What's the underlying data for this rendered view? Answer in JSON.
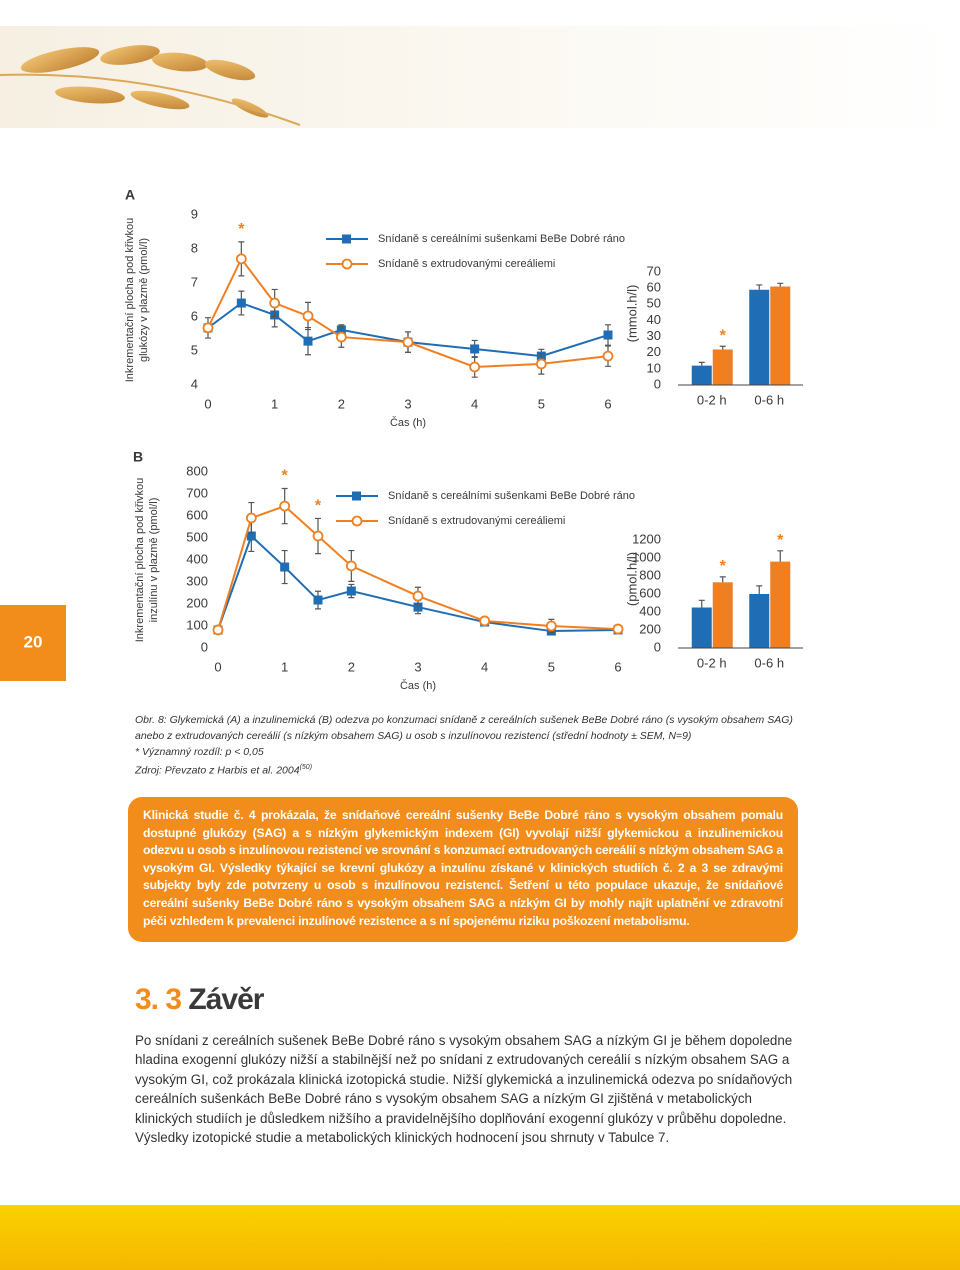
{
  "page_number": "20",
  "caption": {
    "text": "Obr. 8: Glykemická (A) a inzulinemická (B) odezva po konzumaci snídaně z cereálních sušenek BeBe Dobré ráno (s vysokým obsahem SAG) anebo z extrudovaných cereálií (s nízkým obsahem SAG) u osob s inzulínovou rezistencí (střední hodnoty ± SEM, N=9)",
    "note": "* Významný rozdíl: p < 0,05",
    "source": "Zdroj: Převzato z Harbis et al. 2004",
    "source_ref": "(50)"
  },
  "box": {
    "text": "Klinická studie č. 4 prokázala, že snídaňové cereální sušenky BeBe Dobré ráno s vysokým obsahem pomalu dostupné glukózy (SAG) a s nízkým glykemickým indexem (GI) vyvolají nižší glykemickou a inzulinemickou odezvu u osob s inzulínovou rezistencí ve srovnání s konzumací extrudovaných cereálií s nízkým obsahem SAG a vysokým GI. Výsledky týkající se krevní glukózy a inzulínu získané v klinických studiích č. 2 a 3 se zdravými subjekty byly zde potvrzeny u osob s inzulínovou rezistencí. Šetření u této populace ukazuje, že snídaňové cereální sušenky BeBe Dobré ráno s vysokým obsahem SAG a nízkým GI by mohly najít uplatnění ve zdravotní péči vzhledem k prevalenci inzulínové rezistence a s ní spojenému riziku poškození metabolismu."
  },
  "section": {
    "number": "3. 3",
    "title": "Závěr",
    "text": "Po snídani z cereálních sušenek BeBe Dobré ráno s vysokým obsahem SAG a nízkým GI je během dopoledne hladina exogenní glukózy nižší a stabilnější než po snídani z extrudovaných cereálií s nízkým obsahem SAG a vysokým GI, což prokázala klinická izotopická studie. Nižší glykemická a inzulinemická odezva po snídaňových cereálních sušenkách BeBe Dobré ráno s vysokým obsahem SAG a nízkým GI zjištěná v metabolických klinických studiích je důsledkem nižšího a pravidelnějšího doplňování exogenní glukózy v průběhu dopoledne. Výsledky izotopické studie a metabolických klinických hodnocení jsou shrnuty v Tabulce 7."
  },
  "chart_data": [
    {
      "type": "line",
      "title": "A",
      "xlabel": "Čas (h)",
      "ylabel": [
        "Inkrementační plocha pod křivkou",
        "glukózy v plazmě (pmol/l)"
      ],
      "x": [
        0,
        0.5,
        1,
        1.5,
        2,
        3,
        4,
        5,
        6
      ],
      "xlim": [
        0,
        6
      ],
      "xticks": [
        0,
        1,
        2,
        3,
        4,
        5,
        6
      ],
      "ylim": [
        4,
        9
      ],
      "yticks": [
        4,
        5,
        6,
        7,
        8,
        9
      ],
      "legend": "top",
      "series": [
        {
          "name": "Snídaně s cereálními sušenkami BeBe Dobré ráno",
          "color": "#1f6db5",
          "marker": "square",
          "values": [
            5.68,
            6.41,
            6.06,
            5.29,
            5.62,
            5.26,
            5.06,
            4.85,
            5.47
          ],
          "errors": [
            0.3,
            0.35,
            0.35,
            0.4,
            0.15,
            0.3,
            0.25,
            0.2,
            0.3
          ]
        },
        {
          "name": "Snídaně s extrudovanými cereáliemi",
          "color": "#f07f22",
          "marker": "circle",
          "values": [
            5.68,
            7.71,
            6.41,
            6.03,
            5.41,
            5.26,
            4.53,
            4.62,
            4.85
          ],
          "errors": [
            0,
            0.5,
            0.4,
            0.4,
            0.3,
            0.3,
            0.3,
            0.3,
            0.3
          ]
        }
      ],
      "annotations": [
        {
          "text": "*",
          "x": 0.5
        }
      ]
    },
    {
      "type": "bar",
      "ylabel": "(mmol.h/l)",
      "categories": [
        "0-2 h",
        "0-6 h"
      ],
      "ylim": [
        0,
        70
      ],
      "yticks": [
        0,
        10,
        20,
        30,
        40,
        50,
        60,
        70
      ],
      "series": [
        {
          "color": "#1f6db5",
          "values": [
            12,
            59
          ],
          "errors": [
            2,
            3
          ]
        },
        {
          "color": "#f07f22",
          "values": [
            22,
            61
          ],
          "errors": [
            2,
            2
          ]
        }
      ],
      "annotations": [
        {
          "text": "*",
          "category": "0-2 h"
        }
      ]
    },
    {
      "type": "line",
      "title": "B",
      "xlabel": "Čas (h)",
      "ylabel": [
        "Inkrementační plocha pod křivkou",
        "inzulínu v plazmě (pmol/l)"
      ],
      "x": [
        0,
        0.5,
        1,
        1.5,
        2,
        3,
        4,
        5,
        6
      ],
      "xlim": [
        0,
        6
      ],
      "xticks": [
        0,
        1,
        2,
        3,
        4,
        5,
        6
      ],
      "ylim": [
        0,
        800
      ],
      "yticks": [
        0,
        100,
        200,
        300,
        400,
        500,
        600,
        700,
        800
      ],
      "legend": "top",
      "series": [
        {
          "name": "Snídaně s cereálními sušenkami BeBe Dobré ráno",
          "color": "#1f6db5",
          "marker": "square",
          "values": [
            82,
            509,
            368,
            218,
            259,
            186,
            118,
            77,
            82
          ],
          "errors": [
            0,
            70,
            75,
            40,
            30,
            30,
            15,
            15,
            10
          ]
        },
        {
          "name": "Snídaně s extrudovanými cereáliemi",
          "color": "#f07f22",
          "marker": "circle",
          "values": [
            82,
            591,
            645,
            509,
            373,
            236,
            123,
            100,
            86
          ],
          "errors": [
            0,
            70,
            80,
            80,
            70,
            40,
            15,
            30,
            10
          ]
        }
      ],
      "annotations": [
        {
          "text": "*",
          "x": 1
        },
        {
          "text": "*",
          "x": 1.5
        }
      ]
    },
    {
      "type": "bar",
      "ylabel": "(pmol.h/l)",
      "categories": [
        "0-2 h",
        "0-6 h"
      ],
      "ylim": [
        0,
        1200
      ],
      "yticks": [
        0,
        200,
        400,
        600,
        800,
        1000,
        1200
      ],
      "series": [
        {
          "color": "#1f6db5",
          "values": [
            450,
            600
          ],
          "errors": [
            80,
            90
          ]
        },
        {
          "color": "#f07f22",
          "values": [
            730,
            960
          ],
          "errors": [
            60,
            120
          ]
        }
      ],
      "annotations": [
        {
          "text": "*",
          "category": "0-2 h"
        },
        {
          "text": "*",
          "category": "0-6 h"
        }
      ]
    }
  ]
}
